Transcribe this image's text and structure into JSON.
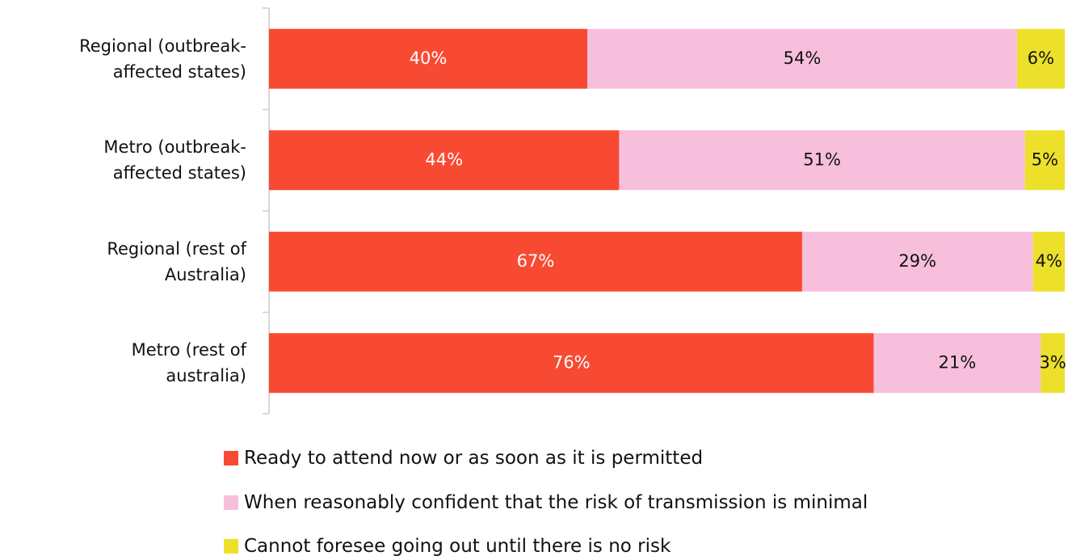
{
  "chart_data": {
    "type": "stacked-bar-horizontal",
    "categories": [
      "Regional (outbreak-\naffected states)",
      "Metro (outbreak-\naffected states)",
      "Regional (rest of\nAustralia)",
      "Metro (rest of\naustralia)"
    ],
    "series": [
      {
        "name": "Ready to attend now or as soon as it is permitted",
        "color": "#f84a33",
        "values": [
          40,
          44,
          67,
          76
        ],
        "value_labels": [
          "40%",
          "44%",
          "67%",
          "76%"
        ]
      },
      {
        "name": "When reasonably confident that the risk of transmission is minimal",
        "color": "#f8bfdd",
        "values": [
          54,
          51,
          29,
          21
        ],
        "value_labels": [
          "54%",
          "51%",
          "29%",
          "21%"
        ]
      },
      {
        "name": "Cannot foresee going out until there is no risk",
        "color": "#ede02a",
        "values": [
          6,
          5,
          4,
          3
        ],
        "value_labels": [
          "6%",
          "5%",
          "4%",
          "3%"
        ]
      }
    ],
    "legend": "bottom"
  }
}
